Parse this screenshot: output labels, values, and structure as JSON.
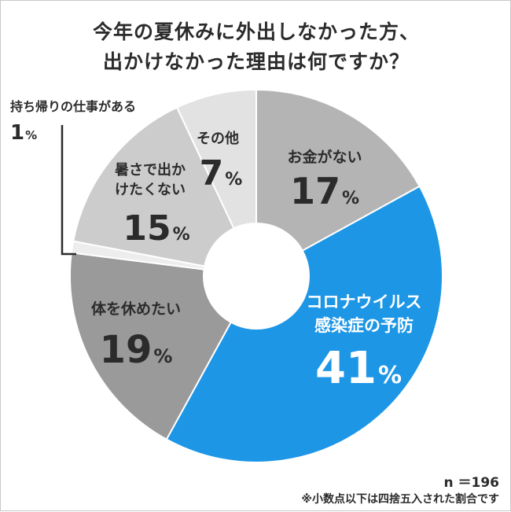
{
  "title": {
    "line1": "今年の夏休みに外出しなかった方、",
    "line2": "出かけなかった理由は何ですか？"
  },
  "footer": {
    "sample": "n ＝196",
    "note": "※小数点以下は四捨五入された割合です"
  },
  "chart_data": {
    "type": "pie",
    "title": "今年の夏休みに外出しなかった方、出かけなかった理由は何ですか？",
    "unit": "%",
    "slices": [
      {
        "label": "お金がない",
        "value": 17,
        "color": "#b4b4b4"
      },
      {
        "label": "コロナウイルス感染症の予防",
        "value": 41,
        "color": "#1e96e6"
      },
      {
        "label": "体を休めたい",
        "value": 19,
        "color": "#9a9a9a"
      },
      {
        "label": "持ち帰りの仕事がある",
        "value": 1,
        "color": "#ededed"
      },
      {
        "label": "暑さで出かけたくない",
        "value": 15,
        "color": "#cccccc"
      },
      {
        "label": "その他",
        "value": 7,
        "color": "#e2e2e2"
      }
    ]
  },
  "labels": {
    "okane": "お金がない",
    "corona1": "コロナウイルス",
    "corona2": "感染症の予防",
    "yasumi": "体を休めたい",
    "mochikaeri": "持ち帰りの仕事がある",
    "atsusa1": "暑さで出か",
    "atsusa2": "けたくない",
    "sonota": "その他"
  }
}
